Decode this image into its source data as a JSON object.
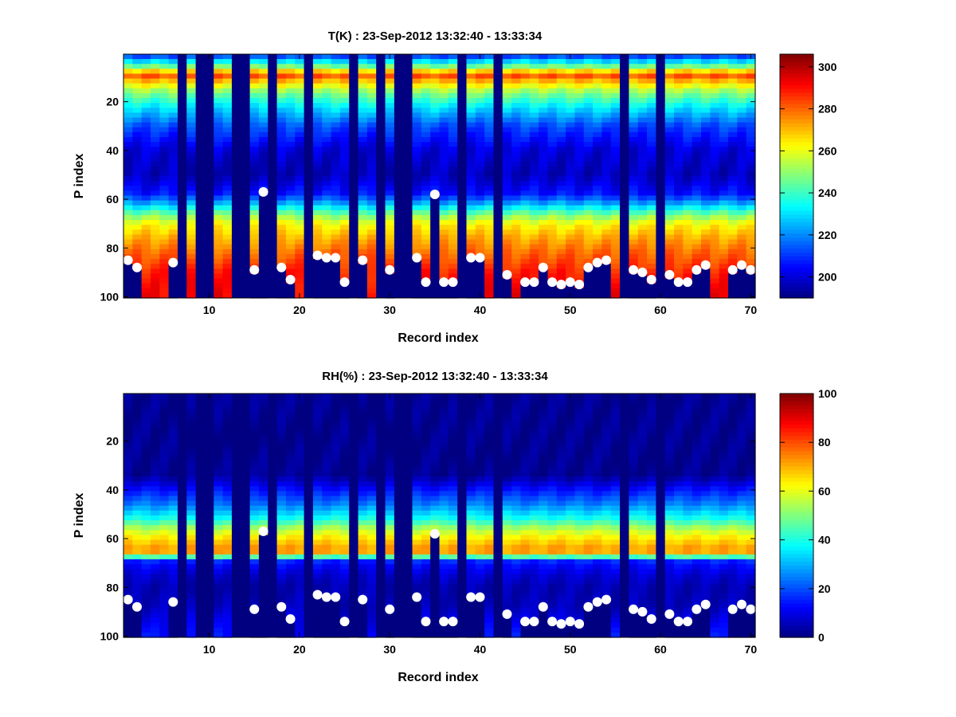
{
  "figure_background": "#ffffff",
  "colormap": "jet",
  "chart_data": [
    {
      "type": "heatmap",
      "title": "T(K) : 23-Sep-2012 13:32:40 - 13:33:34",
      "xlabel": "Record index",
      "ylabel": "P index",
      "xlim": [
        0.5,
        70.5
      ],
      "ylim": [
        0.5,
        100.5
      ],
      "y_reversed": true,
      "xticks": [
        10,
        20,
        30,
        40,
        50,
        60,
        70
      ],
      "yticks": [
        20,
        40,
        60,
        80,
        100
      ],
      "colorbar": {
        "range": [
          190,
          306
        ],
        "ticks": [
          200,
          220,
          240,
          260,
          280,
          300
        ]
      },
      "profile_stops": [
        [
          1,
          210
        ],
        [
          6,
          250
        ],
        [
          9,
          284
        ],
        [
          12,
          268
        ],
        [
          16,
          250
        ],
        [
          22,
          232
        ],
        [
          30,
          213
        ],
        [
          40,
          200
        ],
        [
          50,
          197
        ],
        [
          58,
          207
        ],
        [
          62,
          225
        ],
        [
          66,
          246
        ],
        [
          70,
          262
        ],
        [
          76,
          272
        ],
        [
          82,
          280
        ],
        [
          90,
          288
        ],
        [
          100,
          292
        ]
      ],
      "missing_records": [
        7,
        9,
        10,
        13,
        14,
        17,
        21,
        26,
        29,
        31,
        32,
        38,
        42,
        56,
        60
      ],
      "surface_markers": [
        [
          1,
          85
        ],
        [
          2,
          88
        ],
        [
          6,
          86
        ],
        [
          15,
          89
        ],
        [
          16,
          57
        ],
        [
          18,
          88
        ],
        [
          19,
          93
        ],
        [
          22,
          83
        ],
        [
          23,
          84
        ],
        [
          24,
          84
        ],
        [
          25,
          94
        ],
        [
          27,
          85
        ],
        [
          30,
          89
        ],
        [
          33,
          84
        ],
        [
          34,
          94
        ],
        [
          35,
          58
        ],
        [
          36,
          94
        ],
        [
          37,
          94
        ],
        [
          39,
          84
        ],
        [
          40,
          84
        ],
        [
          43,
          91
        ],
        [
          45,
          94
        ],
        [
          46,
          94
        ],
        [
          47,
          88
        ],
        [
          48,
          94
        ],
        [
          49,
          95
        ],
        [
          50,
          94
        ],
        [
          51,
          95
        ],
        [
          52,
          88
        ],
        [
          53,
          86
        ],
        [
          54,
          85
        ],
        [
          57,
          89
        ],
        [
          58,
          90
        ],
        [
          59,
          93
        ],
        [
          61,
          91
        ],
        [
          62,
          94
        ],
        [
          63,
          94
        ],
        [
          64,
          89
        ],
        [
          65,
          87
        ],
        [
          68,
          89
        ],
        [
          69,
          87
        ],
        [
          70,
          89
        ]
      ]
    },
    {
      "type": "heatmap",
      "title": "RH(%) : 23-Sep-2012 13:32:40 - 13:33:34",
      "xlabel": "Record index",
      "ylabel": "P index",
      "xlim": [
        0.5,
        70.5
      ],
      "ylim": [
        0.5,
        100.5
      ],
      "y_reversed": true,
      "xticks": [
        10,
        20,
        30,
        40,
        50,
        60,
        70
      ],
      "yticks": [
        20,
        40,
        60,
        80,
        100
      ],
      "colorbar": {
        "range": [
          0,
          100
        ],
        "ticks": [
          0,
          20,
          40,
          60,
          80,
          100
        ]
      },
      "profile_stops": [
        [
          1,
          2
        ],
        [
          34,
          2
        ],
        [
          40,
          14
        ],
        [
          46,
          25
        ],
        [
          52,
          40
        ],
        [
          56,
          55
        ],
        [
          60,
          65
        ],
        [
          64,
          72
        ],
        [
          67,
          70
        ],
        [
          68,
          20
        ],
        [
          70,
          14
        ],
        [
          75,
          8
        ],
        [
          80,
          5
        ],
        [
          88,
          6
        ],
        [
          94,
          10
        ],
        [
          100,
          14
        ]
      ],
      "missing_records": [
        7,
        9,
        10,
        13,
        14,
        17,
        21,
        26,
        29,
        31,
        32,
        38,
        42,
        56,
        60
      ],
      "surface_markers": [
        [
          1,
          85
        ],
        [
          2,
          88
        ],
        [
          6,
          86
        ],
        [
          15,
          89
        ],
        [
          16,
          57
        ],
        [
          18,
          88
        ],
        [
          19,
          93
        ],
        [
          22,
          83
        ],
        [
          23,
          84
        ],
        [
          24,
          84
        ],
        [
          25,
          94
        ],
        [
          27,
          85
        ],
        [
          30,
          89
        ],
        [
          33,
          84
        ],
        [
          34,
          94
        ],
        [
          35,
          58
        ],
        [
          36,
          94
        ],
        [
          37,
          94
        ],
        [
          39,
          84
        ],
        [
          40,
          84
        ],
        [
          43,
          91
        ],
        [
          45,
          94
        ],
        [
          46,
          94
        ],
        [
          47,
          88
        ],
        [
          48,
          94
        ],
        [
          49,
          95
        ],
        [
          50,
          94
        ],
        [
          51,
          95
        ],
        [
          52,
          88
        ],
        [
          53,
          86
        ],
        [
          54,
          85
        ],
        [
          57,
          89
        ],
        [
          58,
          90
        ],
        [
          59,
          93
        ],
        [
          61,
          91
        ],
        [
          62,
          94
        ],
        [
          63,
          94
        ],
        [
          64,
          89
        ],
        [
          65,
          87
        ],
        [
          68,
          89
        ],
        [
          69,
          87
        ],
        [
          70,
          89
        ]
      ]
    }
  ]
}
